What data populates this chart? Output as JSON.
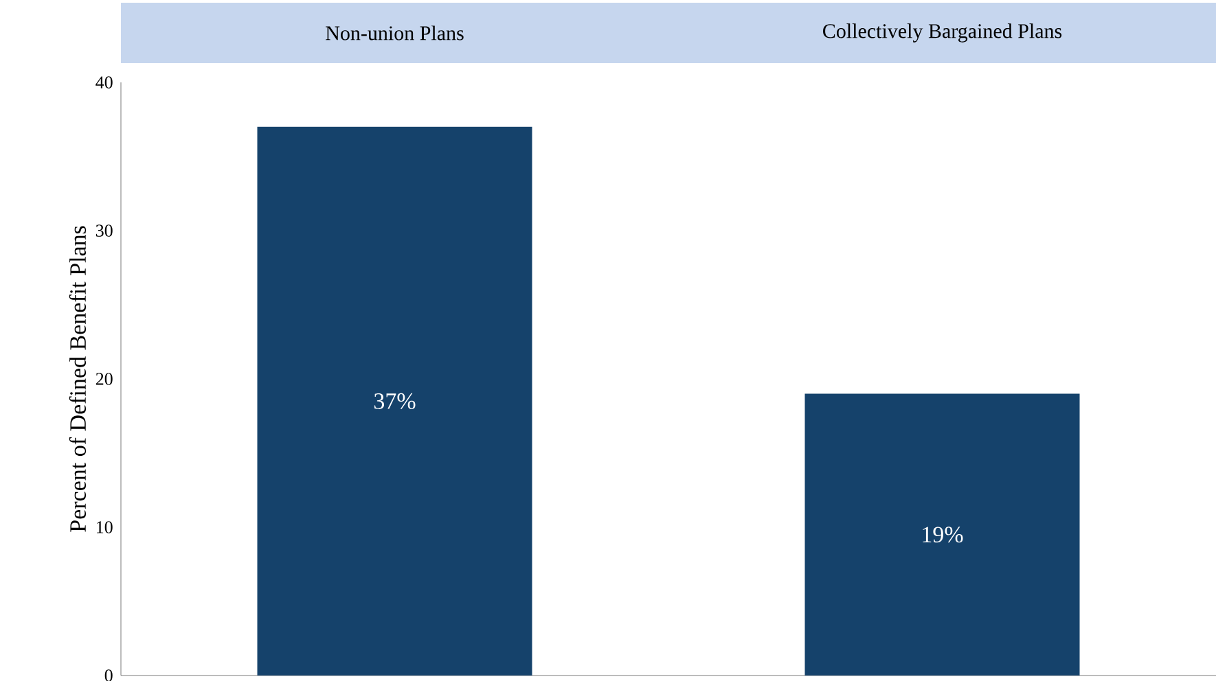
{
  "chart_data": {
    "type": "bar",
    "categories": [
      "Non-union Plans",
      "Collectively Bargained Plans"
    ],
    "values": [
      37,
      19
    ],
    "value_labels": [
      "37%",
      "19%"
    ],
    "color": "#15426b",
    "ylabel": "Percent of Defined Benefit Plans",
    "ylim": [
      0,
      40
    ],
    "yticks": [
      0,
      10,
      20,
      30,
      40
    ]
  }
}
